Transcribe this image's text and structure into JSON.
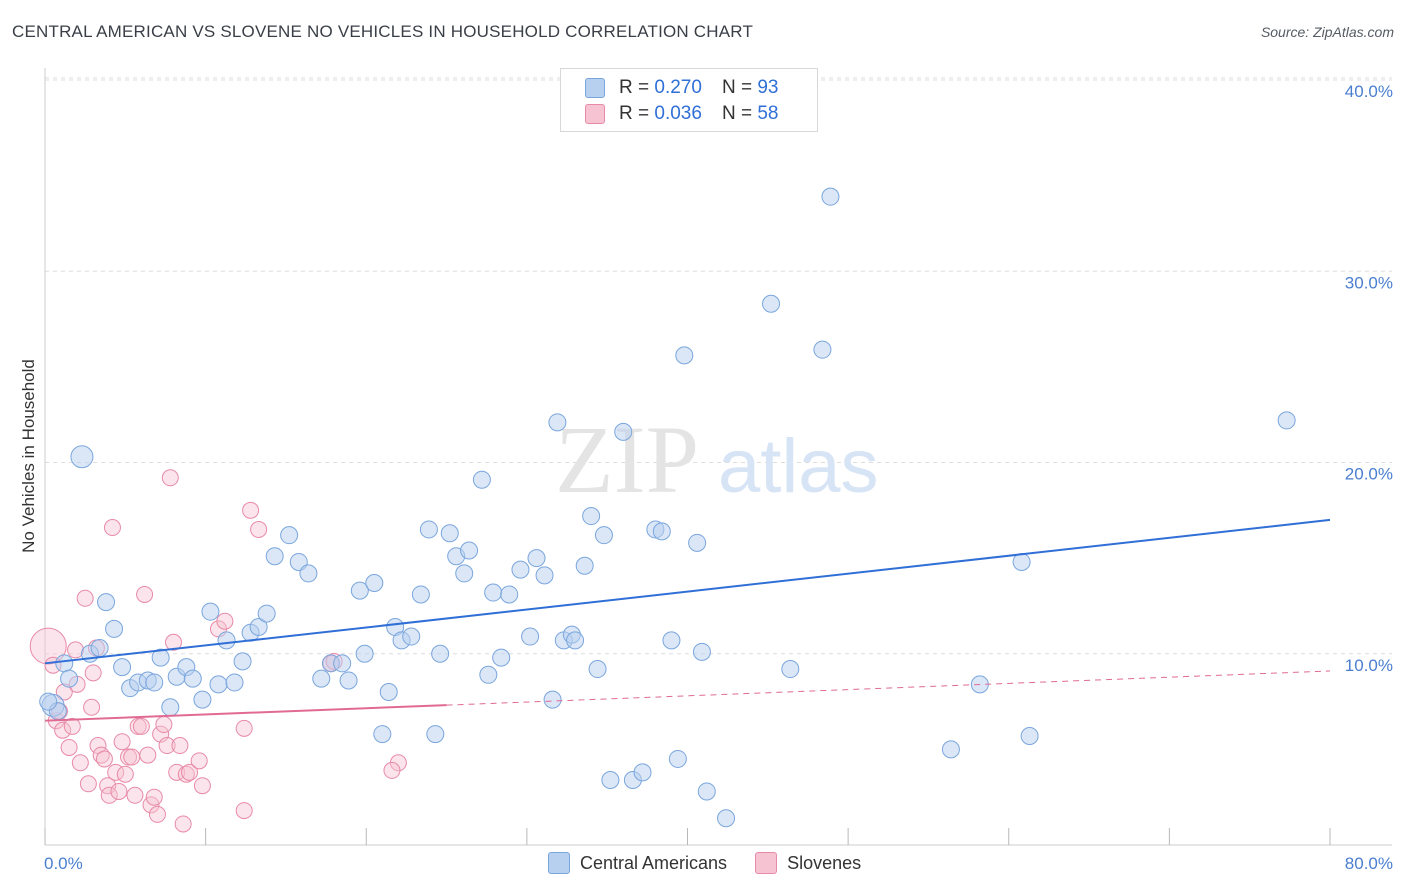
{
  "title": "CENTRAL AMERICAN VS SLOVENE NO VEHICLES IN HOUSEHOLD CORRELATION CHART",
  "source": "Source: ZipAtlas.com",
  "watermark": {
    "zip": "ZIP",
    "atlas": "atlas"
  },
  "legend": {
    "rows": [
      {
        "r_label": "R =",
        "r_value": "0.270",
        "n_label": "N =",
        "n_value": "93"
      },
      {
        "r_label": "R =",
        "r_value": "0.036",
        "n_label": "N =",
        "n_value": "58"
      }
    ]
  },
  "bottom_legend": [
    "Central Americans",
    "Slovenes"
  ],
  "colors": {
    "blue_fill": "#b8d0f0",
    "blue_stroke": "#7aa6dd",
    "blue_line": "#2f6fd6",
    "pink_fill": "#f6c3d3",
    "pink_stroke": "#e88aa8",
    "pink_line": "#e06a93",
    "grid": "#dddddd",
    "tick_text": "#4a7fd0"
  },
  "chart_data": {
    "type": "scatter",
    "title": "CENTRAL AMERICAN VS SLOVENE NO VEHICLES IN HOUSEHOLD CORRELATION CHART",
    "xlabel": "",
    "ylabel": "No Vehicles in Household",
    "xlim": [
      0,
      80
    ],
    "ylim": [
      0,
      40
    ],
    "x_tick_labels": [
      "0.0%",
      "80.0%"
    ],
    "y_ticks": [
      10,
      20,
      30,
      40
    ],
    "y_tick_labels": [
      "10.0%",
      "20.0%",
      "30.0%",
      "40.0%"
    ],
    "grid": true,
    "legend_position": "top-center",
    "series": [
      {
        "name": "Central Americans",
        "r": 0.27,
        "n": 93,
        "trend": {
          "x": [
            0,
            80
          ],
          "y": [
            9.5,
            17.0
          ],
          "style": "solid"
        },
        "points": [
          [
            0.5,
            7.3
          ],
          [
            0.8,
            7.0
          ],
          [
            1.2,
            9.5
          ],
          [
            1.5,
            8.7
          ],
          [
            2.3,
            20.3
          ],
          [
            2.8,
            10.0
          ],
          [
            3.4,
            10.3
          ],
          [
            3.8,
            12.7
          ],
          [
            4.3,
            11.3
          ],
          [
            4.8,
            9.3
          ],
          [
            5.3,
            8.2
          ],
          [
            5.8,
            8.5
          ],
          [
            6.4,
            8.6
          ],
          [
            6.8,
            8.5
          ],
          [
            7.2,
            9.8
          ],
          [
            7.8,
            7.2
          ],
          [
            8.2,
            8.8
          ],
          [
            8.8,
            9.3
          ],
          [
            9.2,
            8.7
          ],
          [
            9.8,
            7.6
          ],
          [
            10.3,
            12.2
          ],
          [
            10.8,
            8.4
          ],
          [
            11.3,
            10.7
          ],
          [
            11.8,
            8.5
          ],
          [
            12.3,
            9.6
          ],
          [
            12.8,
            11.1
          ],
          [
            13.3,
            11.4
          ],
          [
            13.8,
            12.1
          ],
          [
            14.3,
            15.1
          ],
          [
            15.2,
            16.2
          ],
          [
            15.8,
            14.8
          ],
          [
            16.4,
            14.2
          ],
          [
            17.2,
            8.7
          ],
          [
            17.8,
            9.5
          ],
          [
            18.5,
            9.5
          ],
          [
            18.9,
            8.6
          ],
          [
            19.6,
            13.3
          ],
          [
            19.9,
            10.0
          ],
          [
            20.5,
            13.7
          ],
          [
            21.0,
            5.8
          ],
          [
            21.4,
            8.0
          ],
          [
            21.8,
            11.4
          ],
          [
            22.2,
            10.7
          ],
          [
            22.8,
            10.9
          ],
          [
            23.4,
            13.1
          ],
          [
            23.9,
            16.5
          ],
          [
            24.3,
            5.8
          ],
          [
            24.6,
            10.0
          ],
          [
            25.2,
            16.3
          ],
          [
            25.6,
            15.1
          ],
          [
            26.1,
            14.2
          ],
          [
            26.4,
            15.4
          ],
          [
            27.2,
            19.1
          ],
          [
            27.6,
            8.9
          ],
          [
            27.9,
            13.2
          ],
          [
            28.4,
            9.8
          ],
          [
            28.9,
            13.1
          ],
          [
            29.6,
            14.4
          ],
          [
            30.2,
            10.9
          ],
          [
            30.6,
            15.0
          ],
          [
            31.1,
            14.1
          ],
          [
            31.6,
            7.6
          ],
          [
            31.9,
            22.1
          ],
          [
            32.3,
            10.7
          ],
          [
            32.8,
            11.0
          ],
          [
            33.0,
            10.7
          ],
          [
            33.6,
            14.6
          ],
          [
            34.0,
            17.2
          ],
          [
            34.4,
            9.2
          ],
          [
            34.8,
            16.2
          ],
          [
            35.2,
            3.4
          ],
          [
            36.0,
            21.6
          ],
          [
            36.6,
            3.4
          ],
          [
            37.2,
            3.8
          ],
          [
            38.0,
            16.5
          ],
          [
            38.4,
            16.4
          ],
          [
            39.0,
            10.7
          ],
          [
            39.4,
            4.5
          ],
          [
            39.8,
            25.6
          ],
          [
            40.6,
            15.8
          ],
          [
            40.9,
            10.1
          ],
          [
            41.2,
            2.8
          ],
          [
            42.4,
            1.4
          ],
          [
            45.2,
            28.3
          ],
          [
            46.4,
            9.2
          ],
          [
            48.4,
            25.9
          ],
          [
            48.9,
            33.9
          ],
          [
            56.4,
            5.0
          ],
          [
            58.2,
            8.4
          ],
          [
            60.8,
            14.8
          ],
          [
            61.3,
            5.7
          ],
          [
            77.3,
            22.2
          ],
          [
            0.2,
            7.5
          ]
        ]
      },
      {
        "name": "Slovenes",
        "r": 0.036,
        "n": 58,
        "trend": {
          "x": [
            0,
            80
          ],
          "y": [
            6.5,
            9.1
          ],
          "solid_until_x": 25.0
        },
        "points": [
          [
            0.2,
            10.4
          ],
          [
            0.5,
            9.4
          ],
          [
            0.7,
            6.5
          ],
          [
            0.9,
            7.0
          ],
          [
            1.1,
            6.0
          ],
          [
            1.2,
            8.0
          ],
          [
            1.5,
            5.1
          ],
          [
            1.7,
            6.2
          ],
          [
            1.9,
            10.2
          ],
          [
            2.0,
            8.4
          ],
          [
            2.2,
            4.3
          ],
          [
            2.5,
            12.9
          ],
          [
            2.7,
            3.2
          ],
          [
            2.9,
            7.2
          ],
          [
            3.0,
            9.0
          ],
          [
            3.2,
            10.3
          ],
          [
            3.3,
            5.2
          ],
          [
            3.5,
            4.7
          ],
          [
            3.7,
            4.5
          ],
          [
            3.9,
            3.1
          ],
          [
            4.0,
            2.6
          ],
          [
            4.2,
            16.6
          ],
          [
            4.4,
            3.8
          ],
          [
            4.6,
            2.8
          ],
          [
            4.8,
            5.4
          ],
          [
            5.0,
            3.7
          ],
          [
            5.2,
            4.6
          ],
          [
            5.4,
            4.6
          ],
          [
            5.6,
            2.6
          ],
          [
            5.8,
            6.2
          ],
          [
            6.0,
            6.2
          ],
          [
            6.2,
            13.1
          ],
          [
            6.4,
            4.7
          ],
          [
            6.6,
            2.1
          ],
          [
            6.8,
            2.5
          ],
          [
            7.0,
            1.6
          ],
          [
            7.2,
            5.8
          ],
          [
            7.4,
            6.3
          ],
          [
            7.6,
            5.2
          ],
          [
            7.8,
            19.2
          ],
          [
            8.0,
            10.6
          ],
          [
            8.2,
            3.8
          ],
          [
            8.4,
            5.2
          ],
          [
            8.6,
            1.1
          ],
          [
            8.8,
            3.7
          ],
          [
            9.0,
            3.8
          ],
          [
            9.6,
            4.4
          ],
          [
            9.8,
            3.1
          ],
          [
            10.8,
            11.3
          ],
          [
            11.2,
            11.7
          ],
          [
            12.4,
            6.1
          ],
          [
            12.4,
            1.8
          ],
          [
            12.8,
            17.5
          ],
          [
            13.3,
            16.5
          ],
          [
            17.8,
            9.5
          ],
          [
            22.0,
            4.3
          ],
          [
            21.6,
            3.9
          ],
          [
            18.0,
            9.6
          ]
        ]
      }
    ]
  }
}
